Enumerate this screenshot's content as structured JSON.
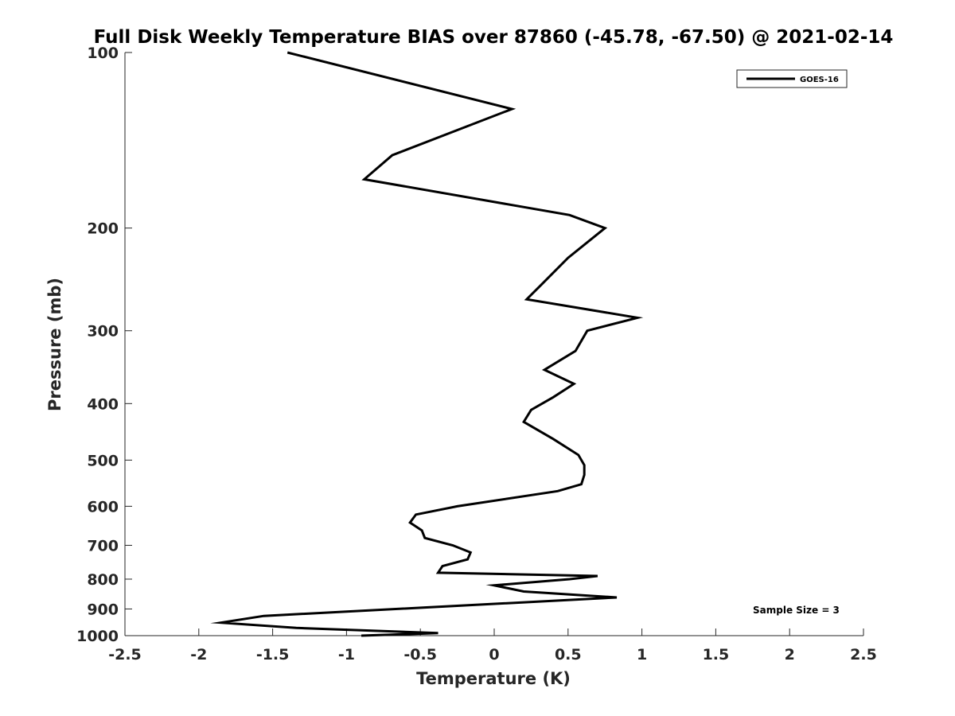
{
  "chart_data": {
    "type": "line",
    "title": "Full Disk Weekly Temperature BIAS over 87860 (-45.78, -67.50) @ 2021-02-14",
    "xlabel": "Temperature (K)",
    "ylabel": "Pressure (mb)",
    "xlim": [
      -2.5,
      2.5
    ],
    "ylim": [
      100,
      1000
    ],
    "y_scale": "log",
    "y_reversed": true,
    "x_ticks": [
      -2.5,
      -2,
      -1.5,
      -1,
      -0.5,
      0,
      0.5,
      1,
      1.5,
      2,
      2.5
    ],
    "x_tick_labels": [
      "-2.5",
      "-2",
      "-1.5",
      "-1",
      "-0.5",
      "0",
      "0.5",
      "1",
      "1.5",
      "2",
      "2.5"
    ],
    "y_ticks": [
      100,
      200,
      300,
      400,
      500,
      600,
      700,
      800,
      900,
      1000
    ],
    "y_tick_labels": [
      "100",
      "200",
      "300",
      "400",
      "500",
      "600",
      "700",
      "800",
      "900",
      "1000"
    ],
    "grid": false,
    "legend_position": "top-right",
    "annotation": "Sample Size = 3",
    "series": [
      {
        "name": "GOES-16",
        "color": "#000000",
        "points": [
          {
            "x": -1.4,
            "p": 100
          },
          {
            "x": 0.12,
            "p": 125
          },
          {
            "x": -0.69,
            "p": 150
          },
          {
            "x": -0.88,
            "p": 165
          },
          {
            "x": 0.51,
            "p": 190
          },
          {
            "x": 0.75,
            "p": 200
          },
          {
            "x": 0.5,
            "p": 225
          },
          {
            "x": 0.32,
            "p": 250
          },
          {
            "x": 0.22,
            "p": 265
          },
          {
            "x": 0.97,
            "p": 285
          },
          {
            "x": 0.63,
            "p": 300
          },
          {
            "x": 0.55,
            "p": 325
          },
          {
            "x": 0.34,
            "p": 350
          },
          {
            "x": 0.54,
            "p": 370
          },
          {
            "x": 0.4,
            "p": 390
          },
          {
            "x": 0.25,
            "p": 410
          },
          {
            "x": 0.2,
            "p": 430
          },
          {
            "x": 0.4,
            "p": 460
          },
          {
            "x": 0.57,
            "p": 490
          },
          {
            "x": 0.61,
            "p": 510
          },
          {
            "x": 0.61,
            "p": 530
          },
          {
            "x": 0.59,
            "p": 550
          },
          {
            "x": 0.43,
            "p": 565
          },
          {
            "x": -0.25,
            "p": 600
          },
          {
            "x": -0.53,
            "p": 620
          },
          {
            "x": -0.57,
            "p": 640
          },
          {
            "x": -0.49,
            "p": 660
          },
          {
            "x": -0.47,
            "p": 680
          },
          {
            "x": -0.28,
            "p": 700
          },
          {
            "x": -0.16,
            "p": 720
          },
          {
            "x": -0.18,
            "p": 740
          },
          {
            "x": -0.35,
            "p": 760
          },
          {
            "x": -0.38,
            "p": 780
          },
          {
            "x": 0.7,
            "p": 790
          },
          {
            "x": 0.51,
            "p": 800
          },
          {
            "x": 0.0,
            "p": 820
          },
          {
            "x": 0.2,
            "p": 840
          },
          {
            "x": 0.83,
            "p": 860
          },
          {
            "x": -1.56,
            "p": 925
          },
          {
            "x": -1.85,
            "p": 950
          },
          {
            "x": -1.34,
            "p": 970
          },
          {
            "x": -0.38,
            "p": 990
          },
          {
            "x": -0.9,
            "p": 1000
          }
        ]
      }
    ]
  }
}
